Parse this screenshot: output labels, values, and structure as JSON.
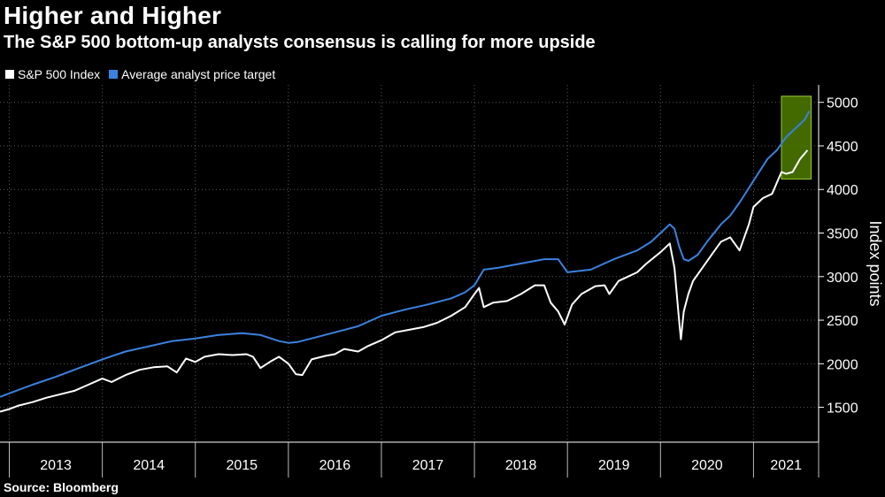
{
  "header": {
    "title": "Higher and Higher",
    "subtitle": "The S&P 500 bottom-up analysts consensus is calling for more upside"
  },
  "legend": [
    {
      "label": "S&P 500 Index",
      "color": "#ffffff"
    },
    {
      "label": "Average analyst price target",
      "color": "#3b82e0"
    }
  ],
  "source": "Source: Bloomberg",
  "colors": {
    "background": "#000000",
    "grid": "#5a5a5a",
    "index_line": "#ffffff",
    "target_line": "#3b82e0",
    "highlight_box": "#4d7d00"
  },
  "chart_data": {
    "type": "line",
    "title": "Higher and Higher",
    "subtitle": "The S&P 500 bottom-up analysts consensus is calling for more upside",
    "xlabel": "",
    "ylabel": "Index points",
    "xlim": [
      2012.9,
      2021.7
    ],
    "ylim": [
      1100,
      5200
    ],
    "yticks": [
      1500,
      2000,
      2500,
      3000,
      3500,
      4000,
      4500,
      5000
    ],
    "xticks": [
      "2013",
      "2014",
      "2015",
      "2016",
      "2017",
      "2018",
      "2019",
      "2020",
      "2021"
    ],
    "grid": true,
    "legend_position": "top-left",
    "highlight": {
      "x_range": [
        2021.3,
        2021.62
      ],
      "y_range": [
        4120,
        5070
      ]
    },
    "series": [
      {
        "name": "S&P 500 Index",
        "x": [
          2012.9,
          2013.0,
          2013.1,
          2013.25,
          2013.4,
          2013.55,
          2013.7,
          2013.85,
          2014.0,
          2014.1,
          2014.25,
          2014.4,
          2014.55,
          2014.7,
          2014.8,
          2014.9,
          2015.0,
          2015.1,
          2015.25,
          2015.4,
          2015.55,
          2015.62,
          2015.7,
          2015.8,
          2015.9,
          2016.0,
          2016.08,
          2016.15,
          2016.25,
          2016.4,
          2016.5,
          2016.6,
          2016.75,
          2016.85,
          2017.0,
          2017.15,
          2017.3,
          2017.45,
          2017.6,
          2017.75,
          2017.9,
          2018.0,
          2018.05,
          2018.1,
          2018.2,
          2018.35,
          2018.5,
          2018.65,
          2018.75,
          2018.82,
          2018.9,
          2018.97,
          2019.05,
          2019.15,
          2019.3,
          2019.4,
          2019.45,
          2019.55,
          2019.65,
          2019.75,
          2019.85,
          2020.0,
          2020.1,
          2020.15,
          2020.2,
          2020.22,
          2020.25,
          2020.3,
          2020.35,
          2020.45,
          2020.55,
          2020.65,
          2020.75,
          2020.85,
          2020.95,
          2021.0,
          2021.1,
          2021.2,
          2021.3,
          2021.35,
          2021.42,
          2021.5,
          2021.58
        ],
        "values": [
          1450,
          1480,
          1520,
          1560,
          1610,
          1650,
          1690,
          1760,
          1830,
          1790,
          1870,
          1930,
          1960,
          1970,
          1900,
          2060,
          2020,
          2080,
          2110,
          2100,
          2110,
          2080,
          1950,
          2020,
          2080,
          2000,
          1880,
          1870,
          2050,
          2090,
          2110,
          2170,
          2140,
          2200,
          2270,
          2360,
          2390,
          2420,
          2470,
          2550,
          2650,
          2800,
          2870,
          2650,
          2700,
          2720,
          2800,
          2900,
          2900,
          2700,
          2600,
          2450,
          2680,
          2800,
          2890,
          2900,
          2800,
          2950,
          3000,
          3050,
          3150,
          3280,
          3380,
          3100,
          2500,
          2280,
          2600,
          2800,
          2950,
          3100,
          3250,
          3400,
          3450,
          3300,
          3600,
          3800,
          3900,
          3950,
          4200,
          4180,
          4200,
          4350,
          4450
        ]
      },
      {
        "name": "Average analyst price target",
        "x": [
          2012.9,
          2013.0,
          2013.25,
          2013.5,
          2013.75,
          2014.0,
          2014.25,
          2014.5,
          2014.75,
          2015.0,
          2015.25,
          2015.5,
          2015.7,
          2015.9,
          2016.0,
          2016.1,
          2016.25,
          2016.5,
          2016.75,
          2017.0,
          2017.25,
          2017.5,
          2017.75,
          2017.9,
          2018.0,
          2018.1,
          2018.25,
          2018.5,
          2018.75,
          2018.9,
          2019.0,
          2019.25,
          2019.5,
          2019.75,
          2019.9,
          2020.0,
          2020.1,
          2020.15,
          2020.2,
          2020.25,
          2020.3,
          2020.4,
          2020.5,
          2020.65,
          2020.75,
          2020.85,
          2021.0,
          2021.15,
          2021.25,
          2021.35,
          2021.45,
          2021.55,
          2021.6
        ],
        "values": [
          1620,
          1660,
          1760,
          1850,
          1950,
          2050,
          2140,
          2200,
          2260,
          2290,
          2330,
          2350,
          2330,
          2260,
          2240,
          2250,
          2290,
          2360,
          2430,
          2550,
          2620,
          2680,
          2750,
          2820,
          2900,
          3080,
          3100,
          3150,
          3200,
          3200,
          3050,
          3080,
          3200,
          3300,
          3400,
          3500,
          3600,
          3550,
          3350,
          3200,
          3180,
          3250,
          3400,
          3600,
          3700,
          3850,
          4100,
          4350,
          4450,
          4600,
          4700,
          4800,
          4900
        ]
      }
    ]
  }
}
